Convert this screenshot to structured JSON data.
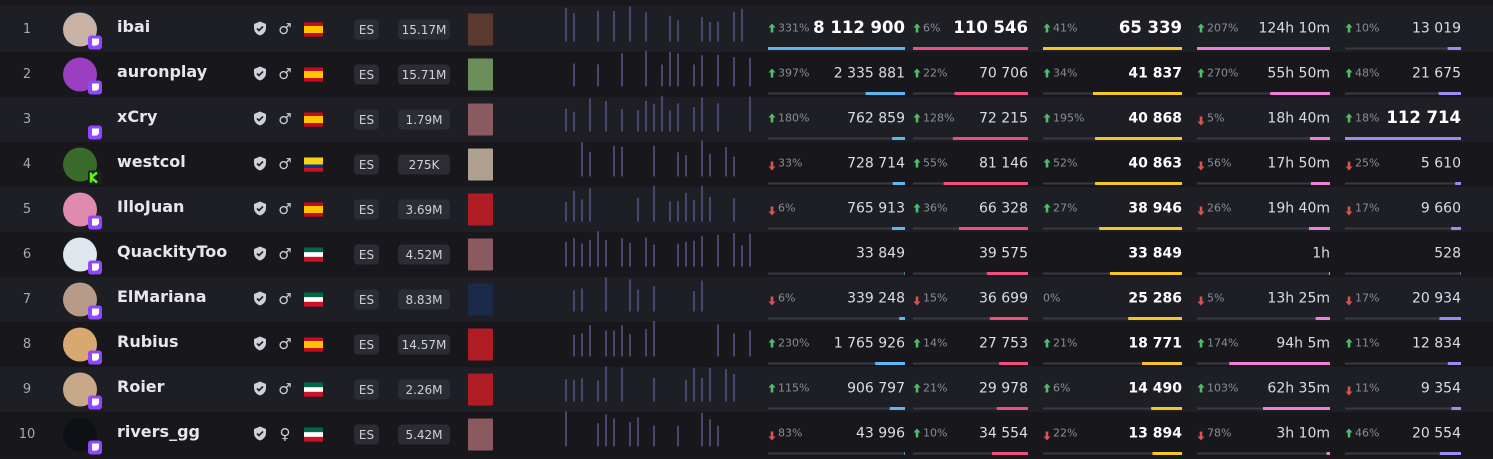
{
  "rows": [
    {
      "rank": 1,
      "name": "ibai",
      "gender": "♂",
      "flag": "es",
      "platform": "twitch",
      "language": "ES",
      "followers": "15.17M",
      "metrics": [
        {
          "change": "331%",
          "dir": "up",
          "value": "8 112 900"
        },
        {
          "change": "6%",
          "dir": "up",
          "value": "110 546"
        },
        {
          "change": "41%",
          "dir": "up",
          "value": "65 339"
        },
        {
          "change": "207%",
          "dir": "up",
          "value": "124h 10m"
        },
        {
          "change": "10%",
          "dir": "up",
          "value": "13 019"
        }
      ]
    },
    {
      "rank": 2,
      "name": "auronplay",
      "gender": "♂",
      "flag": "es",
      "platform": "twitch",
      "language": "ES",
      "followers": "15.71M",
      "metrics": [
        {
          "change": "397%",
          "dir": "up",
          "value": "2 335 881"
        },
        {
          "change": "22%",
          "dir": "up",
          "value": "70 706"
        },
        {
          "change": "34%",
          "dir": "up",
          "value": "41 837"
        },
        {
          "change": "270%",
          "dir": "up",
          "value": "55h 50m"
        },
        {
          "change": "48%",
          "dir": "up",
          "value": "21 675"
        }
      ]
    },
    {
      "rank": 3,
      "name": "xCry",
      "gender": "♂",
      "flag": "es",
      "platform": "twitch",
      "language": "ES",
      "followers": "1.79M",
      "metrics": [
        {
          "change": "180%",
          "dir": "up",
          "value": "762 859"
        },
        {
          "change": "128%",
          "dir": "up",
          "value": "72 215"
        },
        {
          "change": "195%",
          "dir": "up",
          "value": "40 868"
        },
        {
          "change": "5%",
          "dir": "down",
          "value": "18h 40m"
        },
        {
          "change": "18%",
          "dir": "up",
          "value": "112 714"
        }
      ]
    },
    {
      "rank": 4,
      "name": "westcol",
      "gender": "♂",
      "flag": "co",
      "platform": "kick",
      "language": "ES",
      "followers": "275K",
      "metrics": [
        {
          "change": "33%",
          "dir": "down",
          "value": "728 714"
        },
        {
          "change": "55%",
          "dir": "up",
          "value": "81 146"
        },
        {
          "change": "52%",
          "dir": "up",
          "value": "40 863"
        },
        {
          "change": "56%",
          "dir": "down",
          "value": "17h 50m"
        },
        {
          "change": "25%",
          "dir": "down",
          "value": "5 610"
        }
      ]
    },
    {
      "rank": 5,
      "name": "IlloJuan",
      "gender": "♂",
      "flag": "es",
      "platform": "twitch",
      "language": "ES",
      "followers": "3.69M",
      "metrics": [
        {
          "change": "6%",
          "dir": "down",
          "value": "765 913"
        },
        {
          "change": "36%",
          "dir": "up",
          "value": "66 328"
        },
        {
          "change": "27%",
          "dir": "up",
          "value": "38 946"
        },
        {
          "change": "26%",
          "dir": "down",
          "value": "19h 40m"
        },
        {
          "change": "17%",
          "dir": "down",
          "value": "9 660"
        }
      ]
    },
    {
      "rank": 6,
      "name": "QuackityToo",
      "gender": "♂",
      "flag": "mx",
      "platform": "twitch",
      "language": "ES",
      "followers": "4.52M",
      "metrics": [
        {
          "value": "33 849"
        },
        {
          "value": "39 575"
        },
        {
          "value": "33 849"
        },
        {
          "value": "1h"
        },
        {
          "value": "528"
        }
      ]
    },
    {
      "rank": 7,
      "name": "ElMariana",
      "gender": "♂",
      "flag": "mx",
      "platform": "twitch",
      "language": "ES",
      "followers": "8.83M",
      "metrics": [
        {
          "change": "6%",
          "dir": "down",
          "value": "339 248"
        },
        {
          "change": "15%",
          "dir": "down",
          "value": "36 699"
        },
        {
          "change": "0%",
          "value": "25 286"
        },
        {
          "change": "5%",
          "dir": "down",
          "value": "13h 25m"
        },
        {
          "change": "17%",
          "dir": "down",
          "value": "20 934"
        }
      ]
    },
    {
      "rank": 8,
      "name": "Rubius",
      "gender": "♂",
      "flag": "es",
      "platform": "twitch",
      "language": "ES",
      "followers": "14.57M",
      "metrics": [
        {
          "change": "230%",
          "dir": "up",
          "value": "1 765 926"
        },
        {
          "change": "14%",
          "dir": "up",
          "value": "27 753"
        },
        {
          "change": "21%",
          "dir": "up",
          "value": "18 771"
        },
        {
          "change": "174%",
          "dir": "up",
          "value": "94h 5m"
        },
        {
          "change": "11%",
          "dir": "up",
          "value": "12 834"
        }
      ]
    },
    {
      "rank": 9,
      "name": "Roier",
      "gender": "♂",
      "flag": "mx",
      "platform": "twitch",
      "language": "ES",
      "followers": "2.26M",
      "metrics": [
        {
          "change": "115%",
          "dir": "up",
          "value": "906 797"
        },
        {
          "change": "21%",
          "dir": "up",
          "value": "29 978"
        },
        {
          "change": "6%",
          "dir": "up",
          "value": "14 490"
        },
        {
          "change": "103%",
          "dir": "up",
          "value": "62h 35m"
        },
        {
          "change": "11%",
          "dir": "down",
          "value": "9 354"
        }
      ]
    },
    {
      "rank": 10,
      "name": "rivers_gg",
      "gender": "♀",
      "flag": "mx",
      "platform": "twitch",
      "language": "ES",
      "followers": "5.42M",
      "metrics": [
        {
          "change": "83%",
          "dir": "down",
          "value": "43 996"
        },
        {
          "change": "10%",
          "dir": "up",
          "value": "34 554"
        },
        {
          "change": "22%",
          "dir": "down",
          "value": "13 894"
        },
        {
          "change": "78%",
          "dir": "down",
          "value": "3h 10m"
        },
        {
          "change": "46%",
          "dir": "up",
          "value": "20 554"
        }
      ]
    }
  ]
}
